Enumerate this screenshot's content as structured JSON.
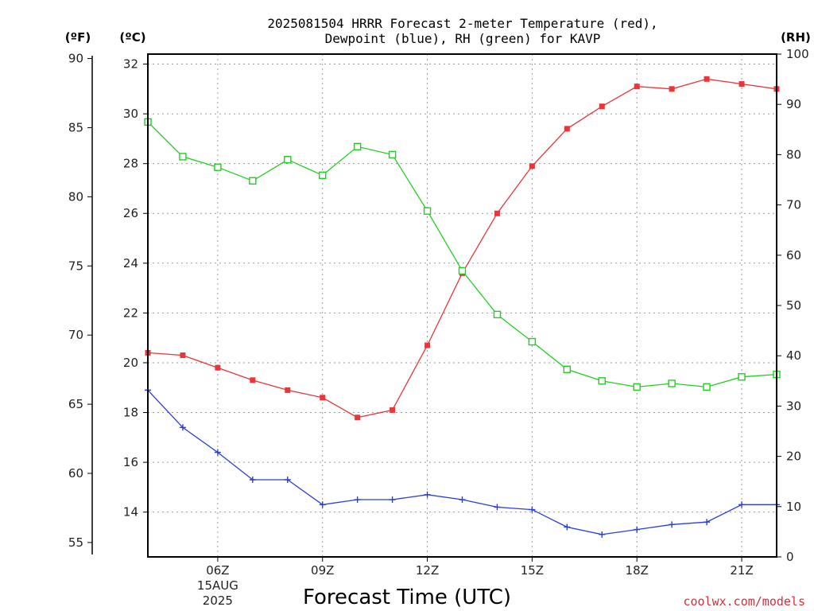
{
  "chart_data": {
    "type": "line",
    "title": "2025081504 HRRR Forecast 2-meter Temperature (red),",
    "subtitle": "Dewpoint (blue), RH (green) for KAVP",
    "xlabel": "Forecast Time (UTC)",
    "units": {
      "fahrenheit": "(ºF)",
      "celsius": "(ºC)",
      "rh": "(RH)"
    },
    "credit": "coolwx.com/models",
    "x_hours": [
      4,
      5,
      6,
      7,
      8,
      9,
      10,
      11,
      12,
      13,
      14,
      15,
      16,
      17,
      18,
      19,
      20,
      21,
      22
    ],
    "xlim": [
      4,
      22
    ],
    "x_ticks": [
      {
        "hour": 6,
        "label": "06Z",
        "date": "15AUG",
        "year": "2025"
      },
      {
        "hour": 9,
        "label": "09Z"
      },
      {
        "hour": 12,
        "label": "12Z"
      },
      {
        "hour": 15,
        "label": "15Z"
      },
      {
        "hour": 18,
        "label": "18Z"
      },
      {
        "hour": 21,
        "label": "21Z"
      }
    ],
    "celsius_axis": {
      "ylim": [
        12.2,
        32.4
      ],
      "ticks": [
        14,
        16,
        18,
        20,
        22,
        24,
        26,
        28,
        30,
        32
      ]
    },
    "fahrenheit_axis": {
      "ticks": [
        55,
        60,
        65,
        70,
        75,
        80,
        85,
        90
      ]
    },
    "rh_axis": {
      "ylim": [
        0,
        100
      ],
      "ticks": [
        0,
        10,
        20,
        30,
        40,
        50,
        60,
        70,
        80,
        90,
        100
      ]
    },
    "grid": true,
    "series": [
      {
        "axis": "celsius",
        "color": "#e8363a",
        "marker": "filled-square",
        "values": [
          20.4,
          20.3,
          19.8,
          19.3,
          18.9,
          18.6,
          17.8,
          18.1,
          20.7,
          23.6,
          26.0,
          27.9,
          29.4,
          30.3,
          31.1,
          31.0,
          31.4,
          31.2,
          31.0
        ]
      },
      {
        "axis": "celsius",
        "color": "#2a3de0",
        "marker": "plus",
        "values": [
          18.9,
          17.4,
          16.4,
          15.3,
          15.3,
          14.3,
          14.5,
          14.5,
          14.7,
          14.5,
          14.2,
          14.1,
          13.4,
          13.1,
          13.3,
          13.5,
          13.6,
          14.3,
          14.3
        ]
      },
      {
        "axis": "rh",
        "color": "#20d020",
        "marker": "open-square",
        "values": [
          86.5,
          79.6,
          77.5,
          74.8,
          79.0,
          75.9,
          81.6,
          80.0,
          68.8,
          56.9,
          48.2,
          42.8,
          37.3,
          35.0,
          33.8,
          34.5,
          33.8,
          35.8,
          36.3
        ]
      }
    ]
  }
}
